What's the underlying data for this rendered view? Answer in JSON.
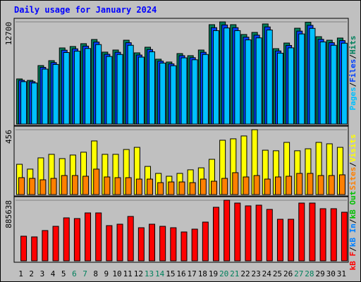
{
  "title": "Daily usage for January 2024",
  "categories": [
    "1",
    "2",
    "3",
    "4",
    "5",
    "6",
    "7",
    "8",
    "9",
    "10",
    "11",
    "12",
    "13",
    "14",
    "15",
    "16",
    "17",
    "18",
    "19",
    "20",
    "21",
    "22",
    "23",
    "24",
    "25",
    "26",
    "27",
    "28",
    "29",
    "30",
    "31"
  ],
  "category_colors": [
    "#000000",
    "#000000",
    "#000000",
    "#000000",
    "#000000",
    "#00805c",
    "#00805c",
    "#000000",
    "#000000",
    "#000000",
    "#000000",
    "#000000",
    "#00805c",
    "#00805c",
    "#000000",
    "#000000",
    "#000000",
    "#000000",
    "#000000",
    "#00805c",
    "#00805c",
    "#000000",
    "#000000",
    "#000000",
    "#000000",
    "#000000",
    "#00805c",
    "#00805c",
    "#000000",
    "#000000",
    "#000000"
  ],
  "chart_data": [
    {
      "type": "bar",
      "ylim": [
        0,
        12700
      ],
      "yticks": [
        12700
      ],
      "legend_separator": "/",
      "series": [
        {
          "name": "Pages",
          "color": "#00c0ff",
          "values": [
            5270,
            5100,
            6830,
            7410,
            8890,
            9060,
            9390,
            9880,
            8400,
            8650,
            9790,
            8320,
            8980,
            7580,
            7250,
            8230,
            7990,
            8650,
            11610,
            11940,
            11610,
            10460,
            10710,
            11690,
            8810,
            9470,
            11200,
            11890,
            10210,
            9790,
            10050
          ]
        },
        {
          "name": "Files",
          "color": "#0040ff",
          "values": [
            5440,
            5270,
            7050,
            7640,
            9180,
            9350,
            9690,
            10190,
            8670,
            8920,
            10110,
            8580,
            9260,
            7820,
            7480,
            8500,
            8250,
            8920,
            11980,
            12320,
            11980,
            10800,
            11050,
            12070,
            9090,
            9770,
            11550,
            12270,
            10530,
            10110,
            10370
          ]
        },
        {
          "name": "Hits",
          "color": "#00805c",
          "values": [
            5610,
            5430,
            7270,
            7880,
            9460,
            9640,
            9990,
            10510,
            8940,
            9200,
            10420,
            8850,
            9550,
            8060,
            7710,
            8760,
            8500,
            9200,
            12350,
            12700,
            12350,
            11130,
            11390,
            12440,
            9370,
            10070,
            11910,
            12650,
            10860,
            10420,
            10690
          ]
        }
      ]
    },
    {
      "type": "bar",
      "ylim": [
        0,
        456
      ],
      "yticks": [
        456
      ],
      "legend_separator": "/",
      "series": [
        {
          "name": "Sites",
          "color": "#ff8000",
          "values": [
            119,
            114,
            104,
            114,
            134,
            134,
            129,
            179,
            124,
            119,
            119,
            109,
            109,
            84,
            89,
            89,
            84,
            109,
            94,
            114,
            154,
            124,
            134,
            109,
            124,
            129,
            149,
            149,
            134,
            134,
            139
          ]
        },
        {
          "name": "Visits",
          "color": "#ffff00",
          "values": [
            213,
            179,
            258,
            283,
            253,
            278,
            298,
            377,
            283,
            283,
            317,
            332,
            198,
            149,
            129,
            149,
            174,
            188,
            248,
            382,
            392,
            412,
            456,
            312,
            308,
            367,
            308,
            322,
            367,
            357,
            332
          ]
        }
      ]
    },
    {
      "type": "bar",
      "ylim": [
        0,
        885638
      ],
      "yticks": [
        885638
      ],
      "legend_separator": "/",
      "series": [
        {
          "name": "kB F",
          "color": "#ff0000",
          "values": [
            360430,
            350130,
            442810,
            504600,
            628180,
            617880,
            700260,
            700260,
            514900,
            535500,
            648770,
            484000,
            535500,
            504600,
            484000,
            422220,
            463410,
            566390,
            782650,
            885638,
            844440,
            803250,
            813540,
            751750,
            607580,
            607580,
            844440,
            844440,
            762050,
            762050,
            710560
          ]
        },
        {
          "name": "kB In",
          "color": "#0080ff",
          "values": [
            0,
            0,
            0,
            0,
            0,
            0,
            0,
            0,
            0,
            0,
            0,
            0,
            0,
            0,
            0,
            0,
            0,
            0,
            0,
            0,
            0,
            0,
            0,
            0,
            0,
            0,
            0,
            0,
            0,
            0,
            0
          ]
        },
        {
          "name": "kB Out",
          "color": "#00c000",
          "values": [
            0,
            0,
            0,
            0,
            0,
            0,
            0,
            0,
            0,
            0,
            0,
            0,
            0,
            0,
            0,
            0,
            0,
            0,
            0,
            0,
            0,
            0,
            0,
            0,
            0,
            0,
            0,
            0,
            0,
            0,
            0
          ]
        }
      ]
    }
  ]
}
